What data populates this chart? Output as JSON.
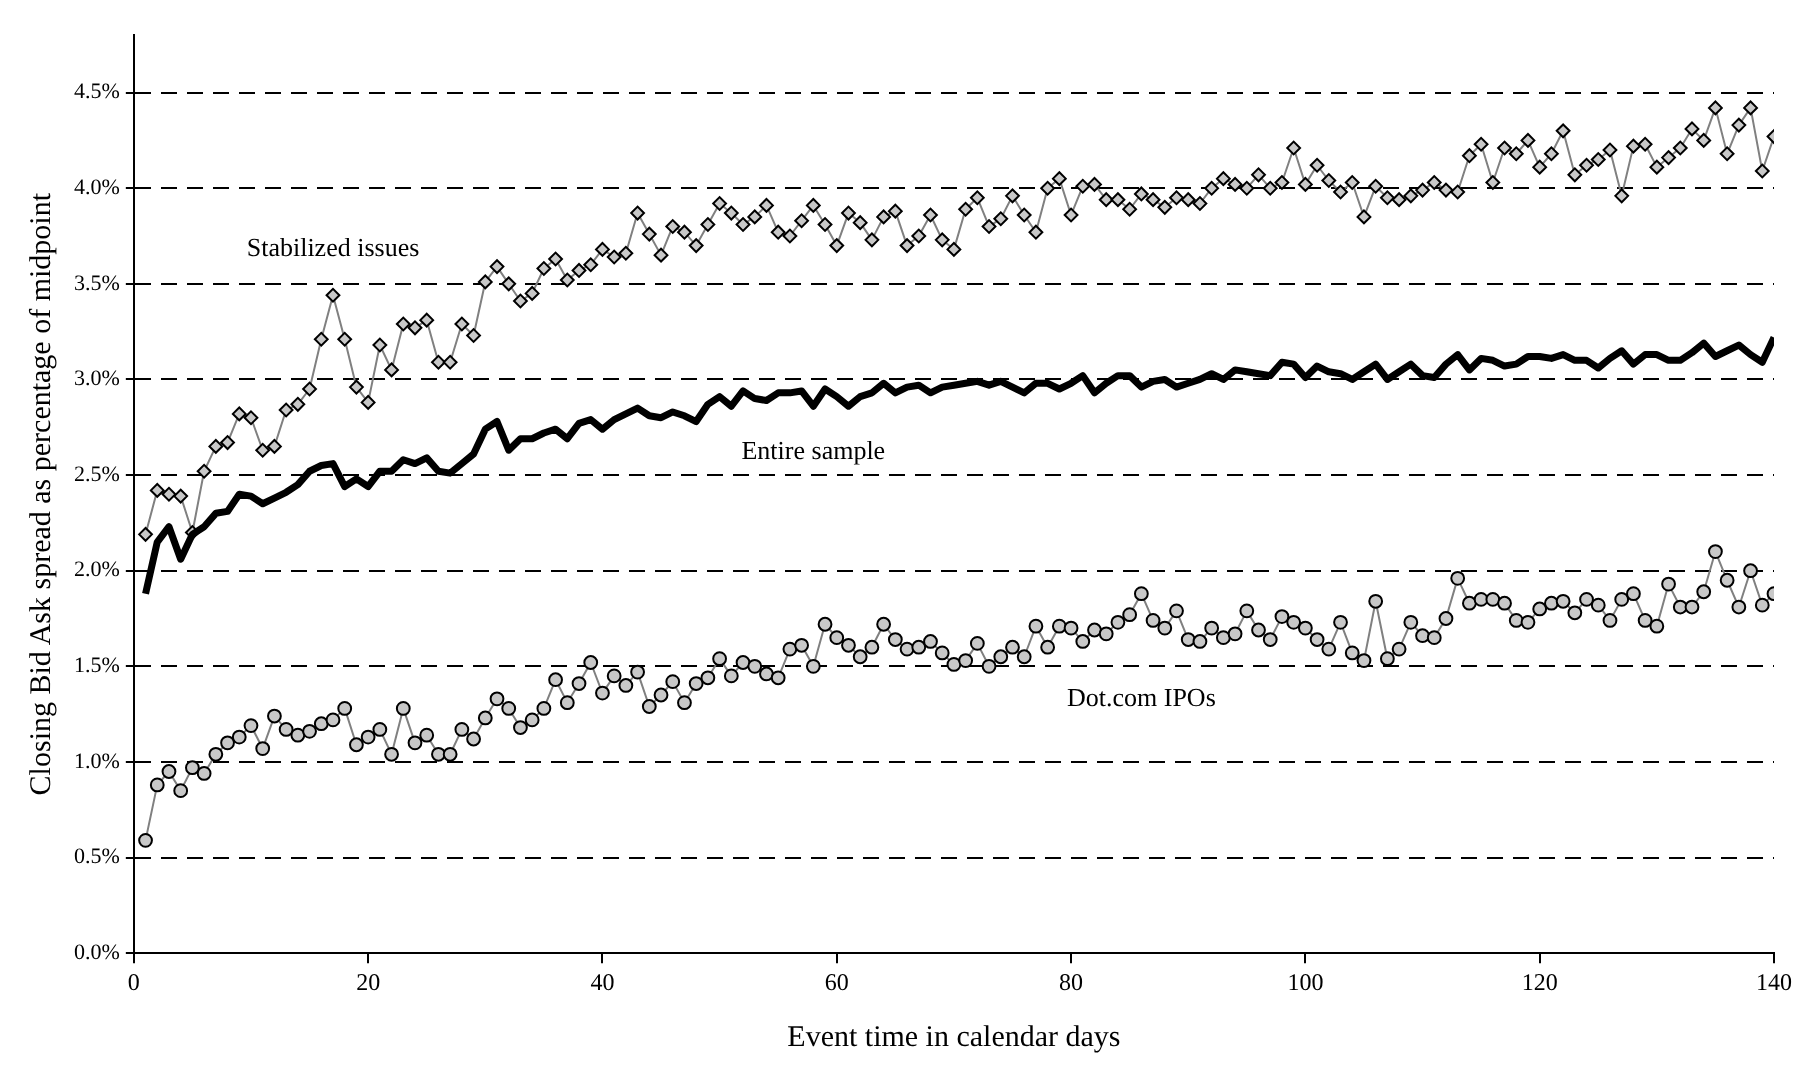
{
  "chart_data": {
    "type": "line",
    "xlabel": "Event time in calendar days",
    "ylabel": "Closing Bid Ask spread as percentage of midpoint",
    "x": [
      1,
      2,
      3,
      4,
      5,
      6,
      7,
      8,
      9,
      10,
      11,
      12,
      13,
      14,
      15,
      16,
      17,
      18,
      19,
      20,
      21,
      22,
      23,
      24,
      25,
      26,
      27,
      28,
      29,
      30,
      31,
      32,
      33,
      34,
      35,
      36,
      37,
      38,
      39,
      40,
      41,
      42,
      43,
      44,
      45,
      46,
      47,
      48,
      49,
      50,
      51,
      52,
      53,
      54,
      55,
      56,
      57,
      58,
      59,
      60,
      61,
      62,
      63,
      64,
      65,
      66,
      67,
      68,
      69,
      70,
      71,
      72,
      73,
      74,
      75,
      76,
      77,
      78,
      79,
      80,
      81,
      82,
      83,
      84,
      85,
      86,
      87,
      88,
      89,
      90,
      91,
      92,
      93,
      94,
      95,
      96,
      97,
      98,
      99,
      100,
      101,
      102,
      103,
      104,
      105,
      106,
      107,
      108,
      109,
      110,
      111,
      112,
      113,
      114,
      115,
      116,
      117,
      118,
      119,
      120,
      121,
      122,
      123,
      124,
      125,
      126,
      127,
      128,
      129,
      130,
      131,
      132,
      133,
      134,
      135,
      136,
      137,
      138,
      139,
      140
    ],
    "series": [
      {
        "name": "Stabilized issues",
        "color": "#808080",
        "marker": "diamond",
        "values": [
          2.19,
          2.42,
          2.4,
          2.39,
          2.2,
          2.52,
          2.65,
          2.67,
          2.82,
          2.8,
          2.63,
          2.65,
          2.84,
          2.87,
          2.95,
          3.21,
          3.44,
          3.21,
          2.96,
          2.88,
          3.18,
          3.05,
          3.29,
          3.27,
          3.31,
          3.09,
          3.09,
          3.29,
          3.23,
          3.51,
          3.59,
          3.5,
          3.41,
          3.45,
          3.58,
          3.63,
          3.52,
          3.57,
          3.6,
          3.68,
          3.64,
          3.66,
          3.87,
          3.76,
          3.65,
          3.8,
          3.77,
          3.7,
          3.81,
          3.92,
          3.87,
          3.81,
          3.85,
          3.91,
          3.77,
          3.75,
          3.83,
          3.91,
          3.81,
          3.7,
          3.87,
          3.82,
          3.73,
          3.85,
          3.88,
          3.7,
          3.75,
          3.86,
          3.73,
          3.68,
          3.89,
          3.95,
          3.8,
          3.84,
          3.96,
          3.86,
          3.77,
          4.0,
          4.05,
          3.86,
          4.01,
          4.02,
          3.94,
          3.94,
          3.89,
          3.97,
          3.94,
          3.9,
          3.95,
          3.94,
          3.92,
          4.0,
          4.05,
          4.02,
          4.0,
          4.07,
          4.0,
          4.03,
          4.21,
          4.02,
          4.12,
          4.04,
          3.98,
          4.03,
          3.85,
          4.01,
          3.95,
          3.94,
          3.96,
          3.99,
          4.03,
          3.99,
          3.98,
          4.17,
          4.23,
          4.03,
          4.21,
          4.18,
          4.25,
          4.11,
          4.18,
          4.3,
          4.07,
          4.12,
          4.15,
          4.2,
          3.96,
          4.22,
          4.23,
          4.11,
          4.16,
          4.21,
          4.31,
          4.25,
          4.42,
          4.18,
          4.33,
          4.42,
          4.09,
          4.27
        ]
      },
      {
        "name": "Entire sample",
        "color": "#000000",
        "marker": "none",
        "values": [
          1.88,
          2.15,
          2.23,
          2.06,
          2.19,
          2.23,
          2.3,
          2.31,
          2.4,
          2.39,
          2.35,
          2.38,
          2.41,
          2.45,
          2.52,
          2.55,
          2.56,
          2.44,
          2.48,
          2.44,
          2.52,
          2.52,
          2.58,
          2.56,
          2.59,
          2.52,
          2.51,
          2.56,
          2.61,
          2.74,
          2.78,
          2.63,
          2.69,
          2.69,
          2.72,
          2.74,
          2.69,
          2.77,
          2.79,
          2.74,
          2.79,
          2.82,
          2.85,
          2.81,
          2.8,
          2.83,
          2.81,
          2.78,
          2.87,
          2.91,
          2.86,
          2.94,
          2.9,
          2.89,
          2.93,
          2.93,
          2.94,
          2.86,
          2.95,
          2.91,
          2.86,
          2.91,
          2.93,
          2.98,
          2.93,
          2.96,
          2.97,
          2.93,
          2.96,
          2.97,
          2.98,
          2.99,
          2.97,
          2.99,
          2.96,
          2.93,
          2.98,
          2.98,
          2.95,
          2.98,
          3.02,
          2.93,
          2.98,
          3.02,
          3.02,
          2.96,
          2.99,
          3.0,
          2.96,
          2.98,
          3.0,
          3.03,
          3.0,
          3.05,
          3.04,
          3.03,
          3.02,
          3.09,
          3.08,
          3.01,
          3.07,
          3.04,
          3.03,
          3.0,
          3.04,
          3.08,
          3.0,
          3.04,
          3.08,
          3.02,
          3.01,
          3.08,
          3.13,
          3.05,
          3.11,
          3.1,
          3.07,
          3.08,
          3.12,
          3.12,
          3.11,
          3.13,
          3.1,
          3.1,
          3.06,
          3.11,
          3.15,
          3.08,
          3.13,
          3.13,
          3.1,
          3.1,
          3.14,
          3.19,
          3.12,
          3.15,
          3.18,
          3.13,
          3.09,
          3.22
        ]
      },
      {
        "name": "Dot.com IPOs",
        "color": "#808080",
        "marker": "circle",
        "values": [
          0.59,
          0.88,
          0.95,
          0.85,
          0.97,
          0.94,
          1.04,
          1.1,
          1.13,
          1.19,
          1.07,
          1.24,
          1.17,
          1.14,
          1.16,
          1.2,
          1.22,
          1.28,
          1.09,
          1.13,
          1.17,
          1.04,
          1.28,
          1.1,
          1.14,
          1.04,
          1.04,
          1.17,
          1.12,
          1.23,
          1.33,
          1.28,
          1.18,
          1.22,
          1.28,
          1.43,
          1.31,
          1.41,
          1.52,
          1.36,
          1.45,
          1.4,
          1.47,
          1.29,
          1.35,
          1.42,
          1.31,
          1.41,
          1.44,
          1.54,
          1.45,
          1.52,
          1.5,
          1.46,
          1.44,
          1.59,
          1.61,
          1.5,
          1.72,
          1.65,
          1.61,
          1.55,
          1.6,
          1.72,
          1.64,
          1.59,
          1.6,
          1.63,
          1.57,
          1.51,
          1.53,
          1.62,
          1.5,
          1.55,
          1.6,
          1.55,
          1.71,
          1.6,
          1.71,
          1.7,
          1.63,
          1.69,
          1.67,
          1.73,
          1.77,
          1.88,
          1.74,
          1.7,
          1.79,
          1.64,
          1.63,
          1.7,
          1.65,
          1.67,
          1.79,
          1.69,
          1.64,
          1.76,
          1.73,
          1.7,
          1.64,
          1.59,
          1.73,
          1.57,
          1.53,
          1.84,
          1.54,
          1.59,
          1.73,
          1.66,
          1.65,
          1.75,
          1.96,
          1.83,
          1.85,
          1.85,
          1.83,
          1.74,
          1.73,
          1.8,
          1.83,
          1.84,
          1.78,
          1.85,
          1.82,
          1.74,
          1.85,
          1.88,
          1.74,
          1.71,
          1.93,
          1.81,
          1.81,
          1.89,
          2.1,
          1.95,
          1.81,
          2.0,
          1.82,
          1.88
        ]
      }
    ],
    "xlim": [
      0,
      140
    ],
    "xticks": [
      0,
      20,
      40,
      60,
      80,
      100,
      120,
      140
    ],
    "ylim": [
      0,
      4.8
    ],
    "yticks": [
      {
        "value": 0,
        "label": "0.0%"
      },
      {
        "value": 0.5,
        "label": "0.5%"
      },
      {
        "value": 1,
        "label": "1.0%"
      },
      {
        "value": 1.5,
        "label": "1.5%"
      },
      {
        "value": 2,
        "label": "2.0%"
      },
      {
        "value": 2.5,
        "label": "2.5%"
      },
      {
        "value": 3,
        "label": "3.0%"
      },
      {
        "value": 3.5,
        "label": "3.5%"
      },
      {
        "value": 4,
        "label": "4.0%"
      },
      {
        "value": 4.5,
        "label": "4.5%"
      }
    ],
    "grid": "y",
    "legend": false
  }
}
